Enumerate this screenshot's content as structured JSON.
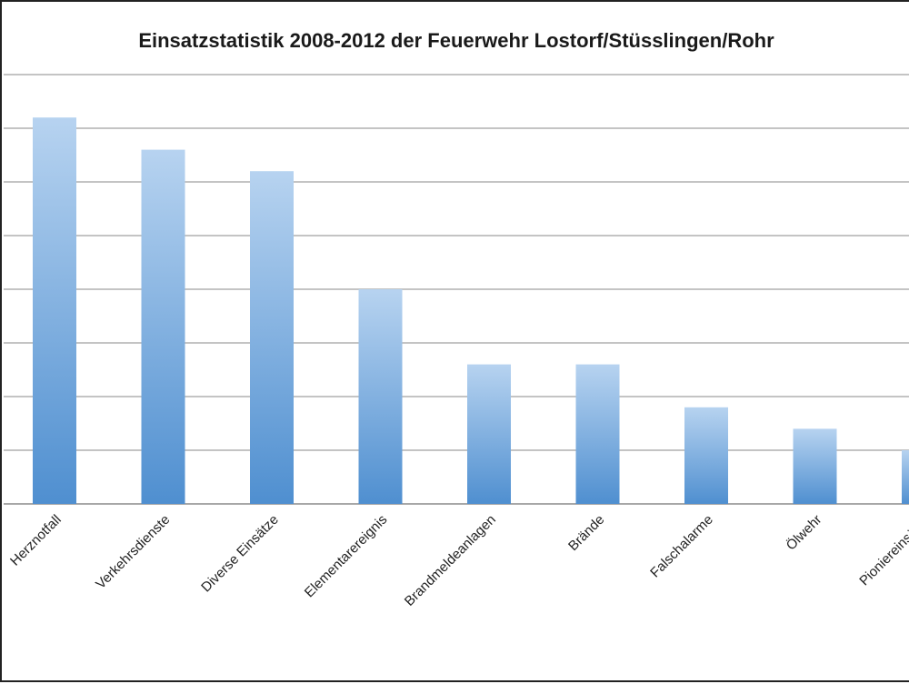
{
  "chart_data": {
    "type": "bar",
    "title": "Einsatzstatistik 2008-2012 der Feuerwehr Lostorf/Stüsslingen/Rohr",
    "xlabel": "",
    "ylabel": "",
    "categories": [
      "Herznotfall",
      "Verkehrsdienste",
      "Diverse Einsätze",
      "Elementarereignis",
      "Brandmeldeanlagen",
      "Brände",
      "Falschalarme",
      "Ölwehr",
      "Pioniereinsätze"
    ],
    "values": [
      72,
      66,
      62,
      40,
      26,
      26,
      18,
      14,
      10
    ],
    "ylim": [
      0,
      80
    ],
    "grid": true,
    "legend": "none",
    "colors": {
      "bar_top": "#b7d3f0",
      "bar_bottom": "#4f8fd0",
      "grid": "#8a8a8a"
    }
  }
}
